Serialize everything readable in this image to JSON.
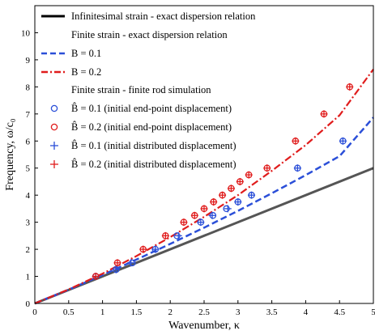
{
  "chart_data": {
    "type": "line",
    "xlabel": "Wavenumber, κ",
    "ylabel": "Frequency, ω/c₀",
    "xlim": [
      0,
      5
    ],
    "ylim": [
      0,
      11
    ],
    "xticks": [
      "0",
      "0.5",
      "1",
      "1.5",
      "2",
      "2.5",
      "3",
      "3.5",
      "4",
      "4.5",
      "5"
    ],
    "yticks": [
      "0",
      "1",
      "2",
      "3",
      "4",
      "5",
      "6",
      "7",
      "8",
      "9",
      "10"
    ],
    "grid": false,
    "legend_position": "top-left",
    "legend": {
      "infinitesimal": "Infinitesimal strain - exact dispersion relation",
      "finite_header": "Finite strain - exact dispersion relation",
      "b01": "B = 0.1",
      "b02": "B = 0.2",
      "sim_header": "Finite strain - finite rod simulation",
      "end01": "B̂ = 0.1 (initial end-point displacement)",
      "end02": "B̂ = 0.2 (initial end-point displacement)",
      "dist01": "B̂ = 0.1 (initial distributed displacement)",
      "dist02": "B̂ = 0.2 (initial distributed displacement)"
    },
    "colors": {
      "infinitesimal": "#555555",
      "blue": "#2b4fd8",
      "red": "#e01c1c"
    },
    "lines": [
      {
        "name": "Infinitesimal strain - exact dispersion relation",
        "style": "solid",
        "color_key": "infinitesimal",
        "x": [
          0,
          5
        ],
        "y": [
          0,
          5
        ]
      },
      {
        "name": "B = 0.1",
        "style": "dashed",
        "color_key": "blue",
        "x": [
          0,
          0.5,
          1.0,
          1.5,
          2.0,
          2.5,
          3.0,
          3.5,
          4.0,
          4.5,
          5.0
        ],
        "y": [
          0,
          0.51,
          1.05,
          1.62,
          2.2,
          2.8,
          3.42,
          4.07,
          4.74,
          5.44,
          6.87
        ]
      },
      {
        "name": "B = 0.2",
        "style": "dashdot",
        "color_key": "red",
        "x": [
          0,
          0.5,
          1.0,
          1.5,
          2.0,
          2.5,
          3.0,
          3.5,
          4.0,
          4.5,
          5.0
        ],
        "y": [
          0,
          0.52,
          1.1,
          1.75,
          2.45,
          3.2,
          4.0,
          4.9,
          5.85,
          6.95,
          8.65
        ]
      }
    ],
    "markers": [
      {
        "name": "B̂ = 0.1 (initial end-point displacement)",
        "marker": "circle",
        "color_key": "blue",
        "x": [
          0.9,
          1.2,
          1.44,
          1.78,
          2.1,
          2.45,
          2.63,
          2.83,
          3.0,
          3.2,
          3.88,
          4.55
        ],
        "y": [
          1.0,
          1.25,
          1.5,
          2.0,
          2.5,
          3.0,
          3.25,
          3.5,
          3.75,
          4.0,
          5.0,
          6.0
        ]
      },
      {
        "name": "B̂ = 0.2 (initial end-point displacement)",
        "marker": "circle",
        "color_key": "red",
        "x": [
          0.9,
          1.22,
          1.6,
          1.93,
          2.2,
          2.36,
          2.5,
          2.64,
          2.77,
          2.9,
          3.03,
          3.16,
          3.43,
          3.85,
          4.27,
          4.65
        ],
        "y": [
          1.0,
          1.5,
          2.0,
          2.5,
          3.0,
          3.25,
          3.5,
          3.75,
          4.0,
          4.25,
          4.5,
          4.75,
          5.0,
          6.0,
          7.0,
          8.0
        ]
      },
      {
        "name": "B̂ = 0.1 (initial distributed displacement)",
        "marker": "plus",
        "color_key": "blue",
        "x": [
          0.9,
          1.2,
          1.42,
          1.78,
          2.12,
          2.45,
          2.62,
          2.85,
          3.0,
          3.2,
          3.88,
          4.55
        ],
        "y": [
          1.0,
          1.25,
          1.5,
          2.0,
          2.5,
          3.0,
          3.25,
          3.5,
          3.75,
          4.0,
          5.0,
          6.0
        ]
      },
      {
        "name": "B̂ = 0.2 (initial distributed displacement)",
        "marker": "plus",
        "color_key": "red",
        "x": [
          0.9,
          1.22,
          1.6,
          1.93,
          2.2,
          2.36,
          2.5,
          2.64,
          2.77,
          2.9,
          3.03,
          3.16,
          3.43,
          3.85,
          4.27,
          4.65
        ],
        "y": [
          1.0,
          1.5,
          2.0,
          2.5,
          3.0,
          3.25,
          3.5,
          3.75,
          4.0,
          4.25,
          4.5,
          4.75,
          5.0,
          6.0,
          7.0,
          8.0
        ]
      }
    ]
  }
}
